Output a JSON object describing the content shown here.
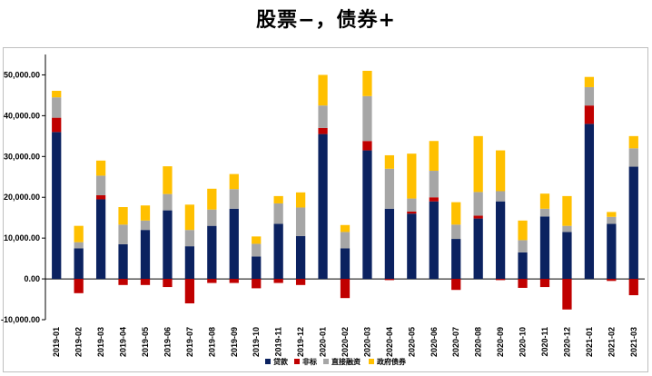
{
  "chart_data": {
    "type": "bar",
    "stacked": true,
    "title": "股票−，债券+",
    "xlabel": "",
    "ylabel": "",
    "ylim": [
      -10000,
      55000
    ],
    "yticks": [
      -10000,
      0,
      10000,
      20000,
      30000,
      40000,
      50000
    ],
    "ytick_labels": [
      "-10,000.00",
      "0.00",
      "10,000.00",
      "20,000.00",
      "30,000.00",
      "40,000.00",
      "50,000.00"
    ],
    "legend_position": "bottom",
    "categories": [
      "2019-01",
      "2019-02",
      "2019-03",
      "2019-04",
      "2019-05",
      "2019-06",
      "2019-07",
      "2019-08",
      "2019-09",
      "2019-10",
      "2019-11",
      "2019-12",
      "2020-01",
      "2020-02",
      "2020-03",
      "2020-04",
      "2020-05",
      "2020-06",
      "2020-07",
      "2020-08",
      "2020-09",
      "2020-10",
      "2020-11",
      "2020-12",
      "2021-01",
      "2021-02",
      "2021-03"
    ],
    "series": [
      {
        "name": "贷款",
        "color": "#0b2260",
        "values": [
          36000,
          7500,
          19500,
          8500,
          12000,
          16800,
          8000,
          13000,
          17200,
          5500,
          13500,
          10500,
          35500,
          7500,
          31500,
          17200,
          16000,
          19000,
          9800,
          14800,
          19000,
          6500,
          15300,
          11500,
          38000,
          13500,
          27500
        ]
      },
      {
        "name": "非标",
        "color": "#c00000",
        "values": [
          3500,
          -3500,
          1000,
          -1500,
          -1500,
          -2000,
          -6000,
          -1000,
          -1000,
          -2300,
          -1000,
          -1500,
          1500,
          -4700,
          2300,
          -300,
          500,
          1000,
          -2700,
          700,
          -300,
          -2200,
          -2000,
          -7500,
          4500,
          -500,
          -4000
        ]
      },
      {
        "name": "直接融资",
        "color": "#a6a6a6",
        "values": [
          5000,
          1500,
          4800,
          4800,
          2300,
          4000,
          4000,
          4000,
          4800,
          3100,
          5000,
          7000,
          5500,
          4000,
          11000,
          9800,
          3200,
          6500,
          3500,
          5800,
          2500,
          3000,
          1900,
          1500,
          4500,
          1700,
          4500
        ]
      },
      {
        "name": "政府债券",
        "color": "#ffc000",
        "values": [
          1600,
          4000,
          3700,
          4300,
          3700,
          6800,
          6200,
          5100,
          3700,
          1800,
          1800,
          3700,
          7500,
          1700,
          6200,
          3300,
          11000,
          7300,
          5500,
          13700,
          10000,
          4800,
          3700,
          7300,
          2500,
          1200,
          3000
        ]
      }
    ]
  }
}
